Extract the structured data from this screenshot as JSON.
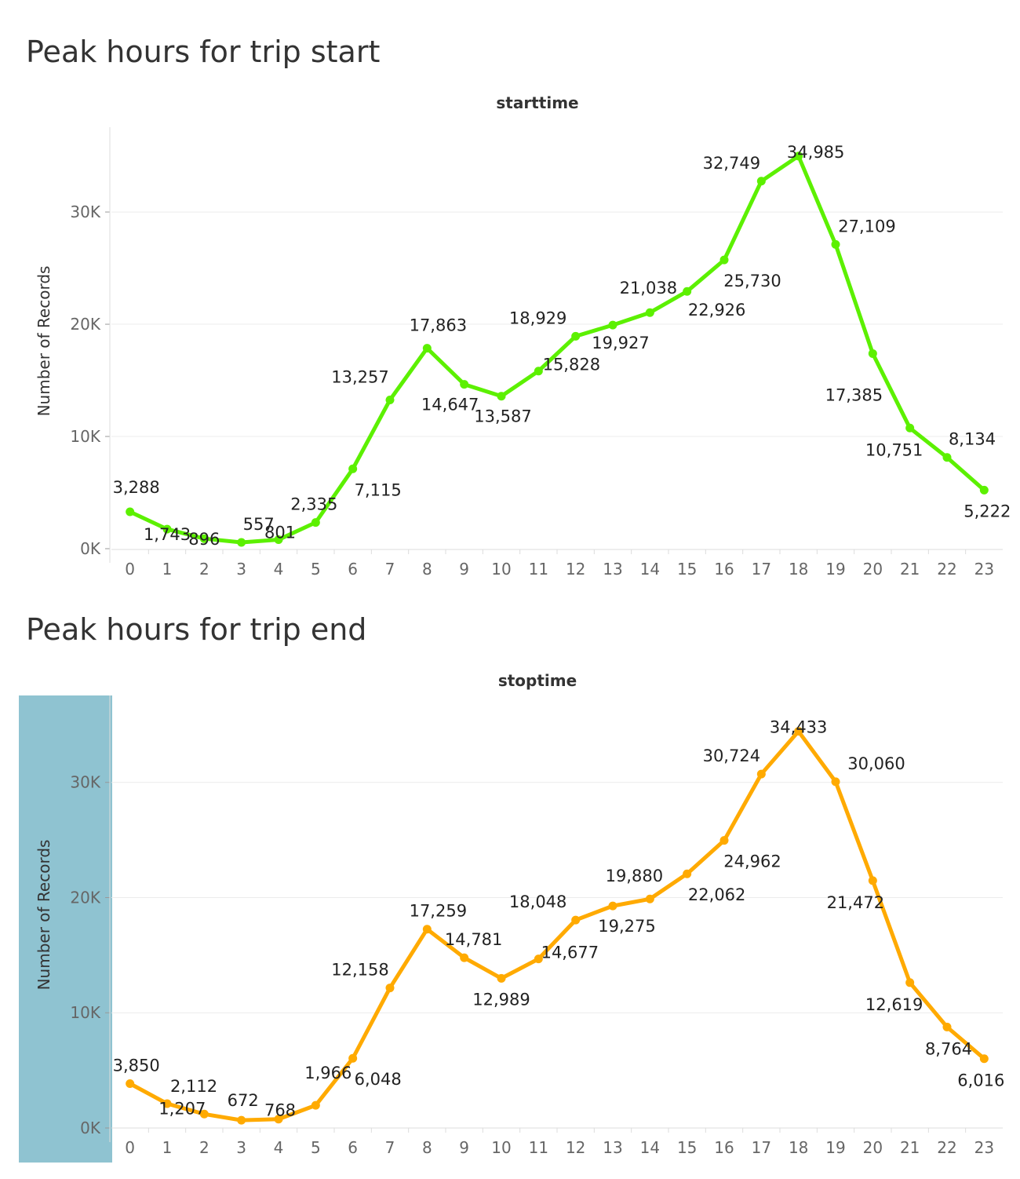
{
  "chart_data": [
    {
      "type": "line",
      "title": "Peak hours for trip start",
      "header": "starttime",
      "ylabel": "Number of Records",
      "yticks": [
        "0K",
        "10K",
        "20K",
        "30K"
      ],
      "ylim": [
        0,
        37000
      ],
      "categories": [
        "0",
        "1",
        "2",
        "3",
        "4",
        "5",
        "6",
        "7",
        "8",
        "9",
        "10",
        "11",
        "12",
        "13",
        "14",
        "15",
        "16",
        "17",
        "18",
        "19",
        "20",
        "21",
        "22",
        "23"
      ],
      "series": [
        {
          "color": "#5cf000",
          "values": [
            3288,
            1743,
            896,
            557,
            801,
            2335,
            7115,
            13257,
            17863,
            14647,
            13587,
            15828,
            18929,
            19927,
            21038,
            22926,
            25730,
            32749,
            34985,
            27109,
            17385,
            10751,
            8134,
            5222
          ],
          "labels": [
            "3,288",
            "1,743",
            "896",
            "557",
            "801",
            "2,335",
            "7,115",
            "13,257",
            "17,863",
            "14,647",
            "13,587",
            "15,828",
            "18,929",
            "19,927",
            "21,038",
            "22,926",
            "25,730",
            "32,749",
            "34,985",
            "27,109",
            "17,385",
            "10,751",
            "8,134",
            "5,222"
          ]
        }
      ],
      "grid": true,
      "highlight_axis": false
    },
    {
      "type": "line",
      "title": "Peak hours for trip end",
      "header": "stoptime",
      "ylabel": "Number of Records",
      "yticks": [
        "0K",
        "10K",
        "20K",
        "30K"
      ],
      "ylim": [
        0,
        37000
      ],
      "categories": [
        "0",
        "1",
        "2",
        "3",
        "4",
        "5",
        "6",
        "7",
        "8",
        "9",
        "10",
        "11",
        "12",
        "13",
        "14",
        "15",
        "16",
        "17",
        "18",
        "19",
        "20",
        "21",
        "22",
        "23"
      ],
      "series": [
        {
          "color": "#ffaa00",
          "values": [
            3850,
            2112,
            1207,
            672,
            768,
            1966,
            6048,
            12158,
            17259,
            14781,
            12989,
            14677,
            18048,
            19275,
            19880,
            22062,
            24962,
            30724,
            34433,
            30060,
            21472,
            12619,
            8764,
            6016
          ],
          "labels": [
            "3,850",
            "2,112",
            "1,207",
            "672",
            "768",
            "1,966",
            "6,048",
            "12,158",
            "17,259",
            "14,781",
            "12,989",
            "14,677",
            "18,048",
            "19,275",
            "19,880",
            "22,062",
            "24,962",
            "30,724",
            "34,433",
            "30,060",
            "21,472",
            "12,619",
            "8,764",
            "6,016"
          ]
        }
      ],
      "grid": true,
      "highlight_axis": true,
      "highlight_color": "#8fc3d1"
    }
  ]
}
